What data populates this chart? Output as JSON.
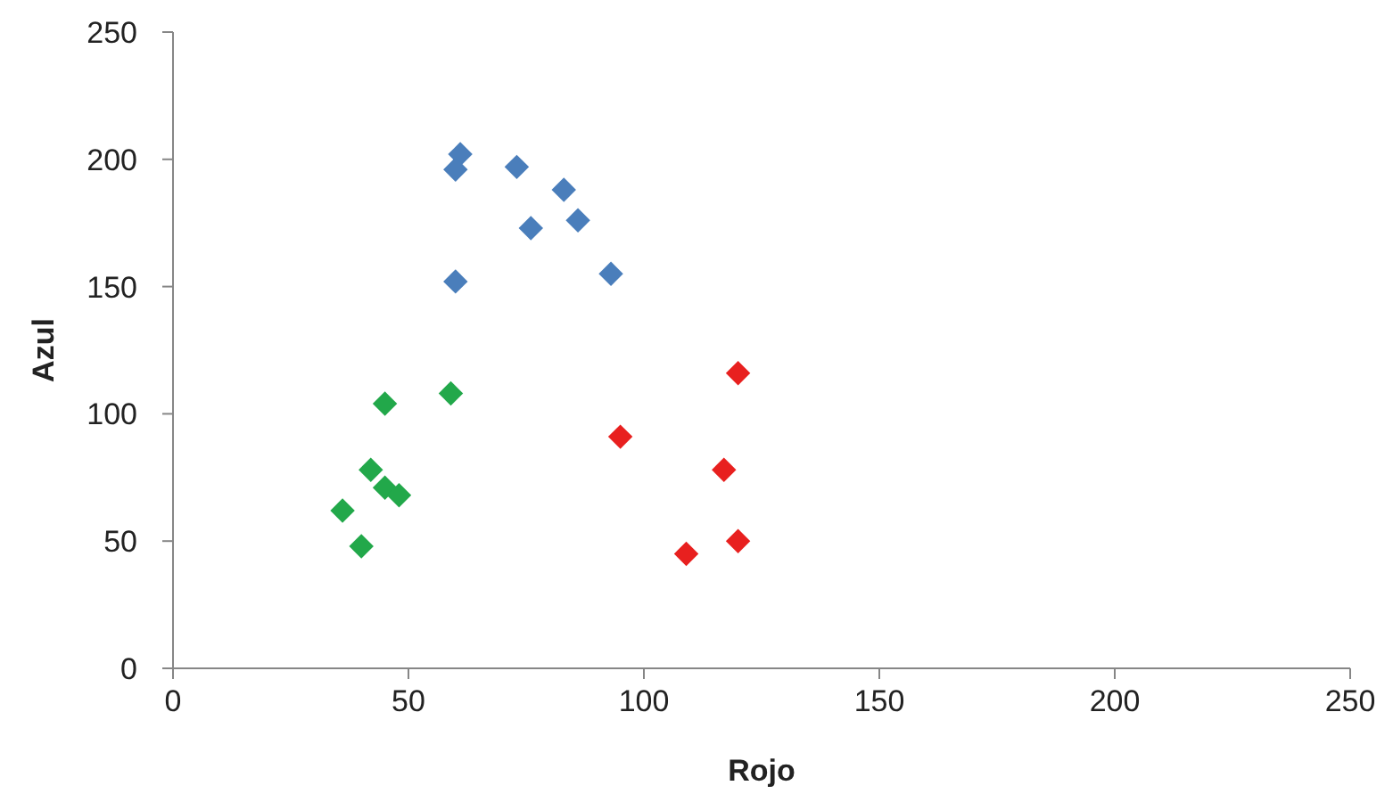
{
  "chart_data": {
    "type": "scatter",
    "xlabel": "Rojo",
    "ylabel": "Azul",
    "xlim": [
      0,
      250
    ],
    "ylim": [
      0,
      250
    ],
    "xticks": [
      0,
      50,
      100,
      150,
      200,
      250
    ],
    "yticks": [
      0,
      50,
      100,
      150,
      200,
      250
    ],
    "grid": false,
    "marker": "diamond",
    "series": [
      {
        "color": "#4a7ebb",
        "x": [
          61,
          60,
          73,
          83,
          76,
          86,
          60,
          93
        ],
        "values": [
          202,
          196,
          197,
          188,
          173,
          176,
          152,
          155
        ]
      },
      {
        "color": "#22a84a",
        "x": [
          45,
          59,
          42,
          36,
          45,
          48,
          40
        ],
        "values": [
          104,
          108,
          78,
          62,
          71,
          68,
          48
        ]
      },
      {
        "color": "#e8201f",
        "x": [
          120,
          95,
          117,
          120,
          109
        ],
        "values": [
          116,
          91,
          78,
          50,
          45
        ]
      }
    ]
  }
}
